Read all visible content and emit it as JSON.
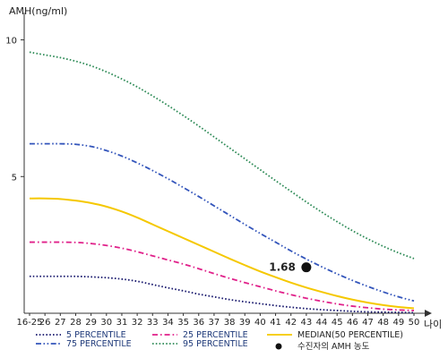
{
  "chart_data": {
    "type": "line",
    "ylabel": "AMH(ng/ml)",
    "xlabel": "나이",
    "categories": [
      "16-25",
      "26",
      "27",
      "28",
      "29",
      "30",
      "31",
      "32",
      "33",
      "34",
      "35",
      "36",
      "37",
      "38",
      "39",
      "40",
      "41",
      "42",
      "43",
      "44",
      "45",
      "46",
      "47",
      "48",
      "49",
      "50"
    ],
    "yticks": [
      5,
      10
    ],
    "ylim": [
      0,
      11
    ],
    "series": [
      {
        "name": "5 PERCENTILE",
        "color": "#1a1a6e",
        "style": "dotted",
        "values": [
          1.35,
          1.35,
          1.35,
          1.35,
          1.33,
          1.3,
          1.25,
          1.17,
          1.05,
          0.93,
          0.82,
          0.7,
          0.6,
          0.5,
          0.42,
          0.35,
          0.28,
          0.22,
          0.17,
          0.13,
          0.1,
          0.07,
          0.05,
          0.04,
          0.03,
          0.02
        ]
      },
      {
        "name": "25 PERCENTILE",
        "color": "#e0218a",
        "style": "dashdot",
        "values": [
          2.6,
          2.6,
          2.6,
          2.59,
          2.55,
          2.48,
          2.38,
          2.25,
          2.1,
          1.95,
          1.8,
          1.63,
          1.45,
          1.28,
          1.12,
          0.97,
          0.82,
          0.68,
          0.55,
          0.44,
          0.34,
          0.26,
          0.2,
          0.15,
          0.12,
          0.1
        ]
      },
      {
        "name": "MEDIAN(50 PERCENTILE)",
        "color": "#f5c800",
        "style": "solid",
        "values": [
          4.2,
          4.2,
          4.18,
          4.12,
          4.03,
          3.9,
          3.72,
          3.5,
          3.25,
          3.0,
          2.75,
          2.5,
          2.25,
          2.0,
          1.76,
          1.53,
          1.32,
          1.12,
          0.94,
          0.78,
          0.63,
          0.5,
          0.39,
          0.3,
          0.23,
          0.18
        ]
      },
      {
        "name": "75 PERCENTILE",
        "color": "#3355bb",
        "style": "dashdotdot",
        "values": [
          6.2,
          6.2,
          6.2,
          6.18,
          6.1,
          5.95,
          5.75,
          5.5,
          5.22,
          4.92,
          4.6,
          4.27,
          3.93,
          3.59,
          3.25,
          2.92,
          2.6,
          2.28,
          1.98,
          1.7,
          1.44,
          1.2,
          0.98,
          0.78,
          0.6,
          0.45
        ]
      },
      {
        "name": "95 PERCENTILE",
        "color": "#2e8b57",
        "style": "dotted",
        "values": [
          9.55,
          9.45,
          9.35,
          9.22,
          9.05,
          8.83,
          8.57,
          8.28,
          7.95,
          7.6,
          7.23,
          6.85,
          6.45,
          6.05,
          5.65,
          5.25,
          4.85,
          4.46,
          4.07,
          3.7,
          3.35,
          3.02,
          2.72,
          2.45,
          2.21,
          2.0
        ]
      }
    ],
    "marker": {
      "label": "수진자의 AMH 농도",
      "category": "43",
      "value": 1.68,
      "value_label": "1.68",
      "color": "#111111"
    },
    "legend_placement": "bottom",
    "grid": false
  }
}
